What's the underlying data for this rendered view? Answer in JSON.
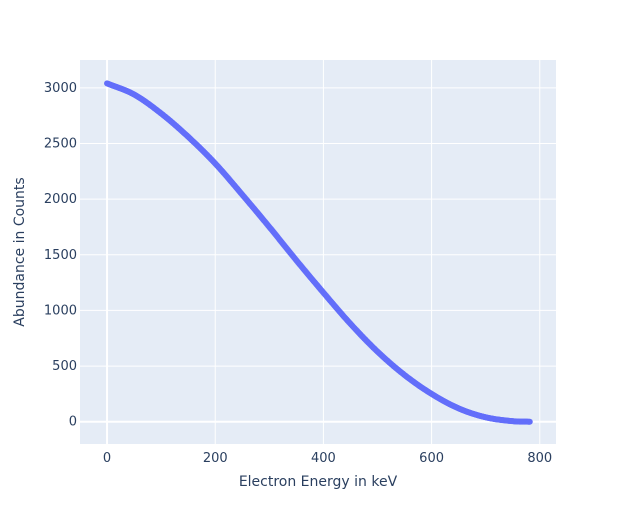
{
  "chart_data": {
    "type": "scatter",
    "title": "",
    "xlabel": "Electron Energy in keV",
    "ylabel": "Abundance in Counts",
    "xlim": [
      -50,
      830
    ],
    "ylim": [
      -200,
      3250
    ],
    "x_ticks": [
      0,
      200,
      400,
      600,
      800
    ],
    "y_ticks": [
      0,
      500,
      1000,
      1500,
      2000,
      2500,
      3000
    ],
    "grid": true,
    "legend": "none",
    "colors": {
      "marker": "#636efa",
      "plot_bg": "#e5ecf6",
      "grid": "#ffffff",
      "text": "#2a3f5f"
    },
    "series": [
      {
        "x": [
          0,
          50,
          100,
          150,
          200,
          250,
          300,
          350,
          400,
          450,
          500,
          550,
          600,
          650,
          700,
          750,
          782
        ],
        "y": [
          3040,
          2940,
          2770,
          2560,
          2320,
          2040,
          1750,
          1450,
          1160,
          880,
          630,
          420,
          250,
          120,
          40,
          5,
          0
        ]
      }
    ]
  }
}
